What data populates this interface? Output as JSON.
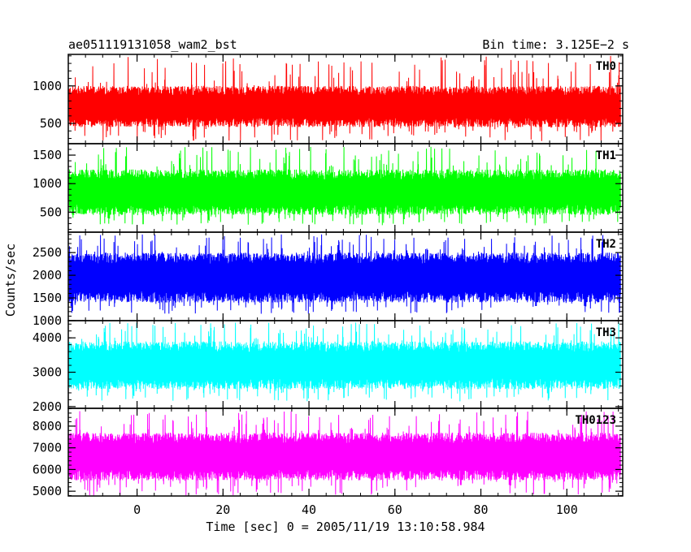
{
  "chart_data": {
    "type": "line",
    "title": "ae051119131058_wam2_bst",
    "subtitle": "Bin time: 3.125E−2 s",
    "xlabel": "Time [sec] 0 = 2005/11/19 13:10:58.984",
    "ylabel": "Counts/sec",
    "xlim": [
      -16,
      113
    ],
    "x_ticks": [
      0,
      20,
      40,
      60,
      80,
      100
    ],
    "x_tick_labels": [
      "0",
      "20",
      "40",
      "60",
      "80",
      "100"
    ],
    "data_x_range": [
      -15.8,
      112.5
    ],
    "grid": false,
    "panels": [
      {
        "name": "TH0",
        "color": "#ff0000",
        "ylim": [
          230,
          1420
        ],
        "y_ticks": [
          500,
          1000
        ],
        "y_tick_labels": [
          "500",
          "1000"
        ],
        "band": [
          450,
          1000
        ],
        "extremes": [
          260,
          1400
        ]
      },
      {
        "name": "TH1",
        "color": "#00ff00",
        "ylim": [
          150,
          1700
        ],
        "y_ticks": [
          500,
          1000,
          1500
        ],
        "y_tick_labels": [
          "500",
          "1000",
          "1500"
        ],
        "band": [
          450,
          1250
        ],
        "extremes": [
          270,
          1650
        ]
      },
      {
        "name": "TH2",
        "color": "#0000ff",
        "ylim": [
          1000,
          2950
        ],
        "y_ticks": [
          1000,
          1500,
          2000,
          2500
        ],
        "y_tick_labels": [
          "1000",
          "1500",
          "2000",
          "2500"
        ],
        "band": [
          1400,
          2500
        ],
        "extremes": [
          1150,
          2900
        ]
      },
      {
        "name": "TH3",
        "color": "#00ffff",
        "ylim": [
          1950,
          4500
        ],
        "y_ticks": [
          2000,
          3000,
          4000
        ],
        "y_tick_labels": [
          "2000",
          "3000",
          "4000"
        ],
        "band": [
          2500,
          3900
        ],
        "extremes": [
          2150,
          4450
        ]
      },
      {
        "name": "TH0123",
        "color": "#ff00ff",
        "ylim": [
          4780,
          8820
        ],
        "y_ticks": [
          5000,
          6000,
          7000,
          8000
        ],
        "y_tick_labels": [
          "5000",
          "6000",
          "7000",
          "8000"
        ],
        "band": [
          5500,
          7700
        ],
        "extremes": [
          4800,
          8700
        ]
      }
    ]
  }
}
